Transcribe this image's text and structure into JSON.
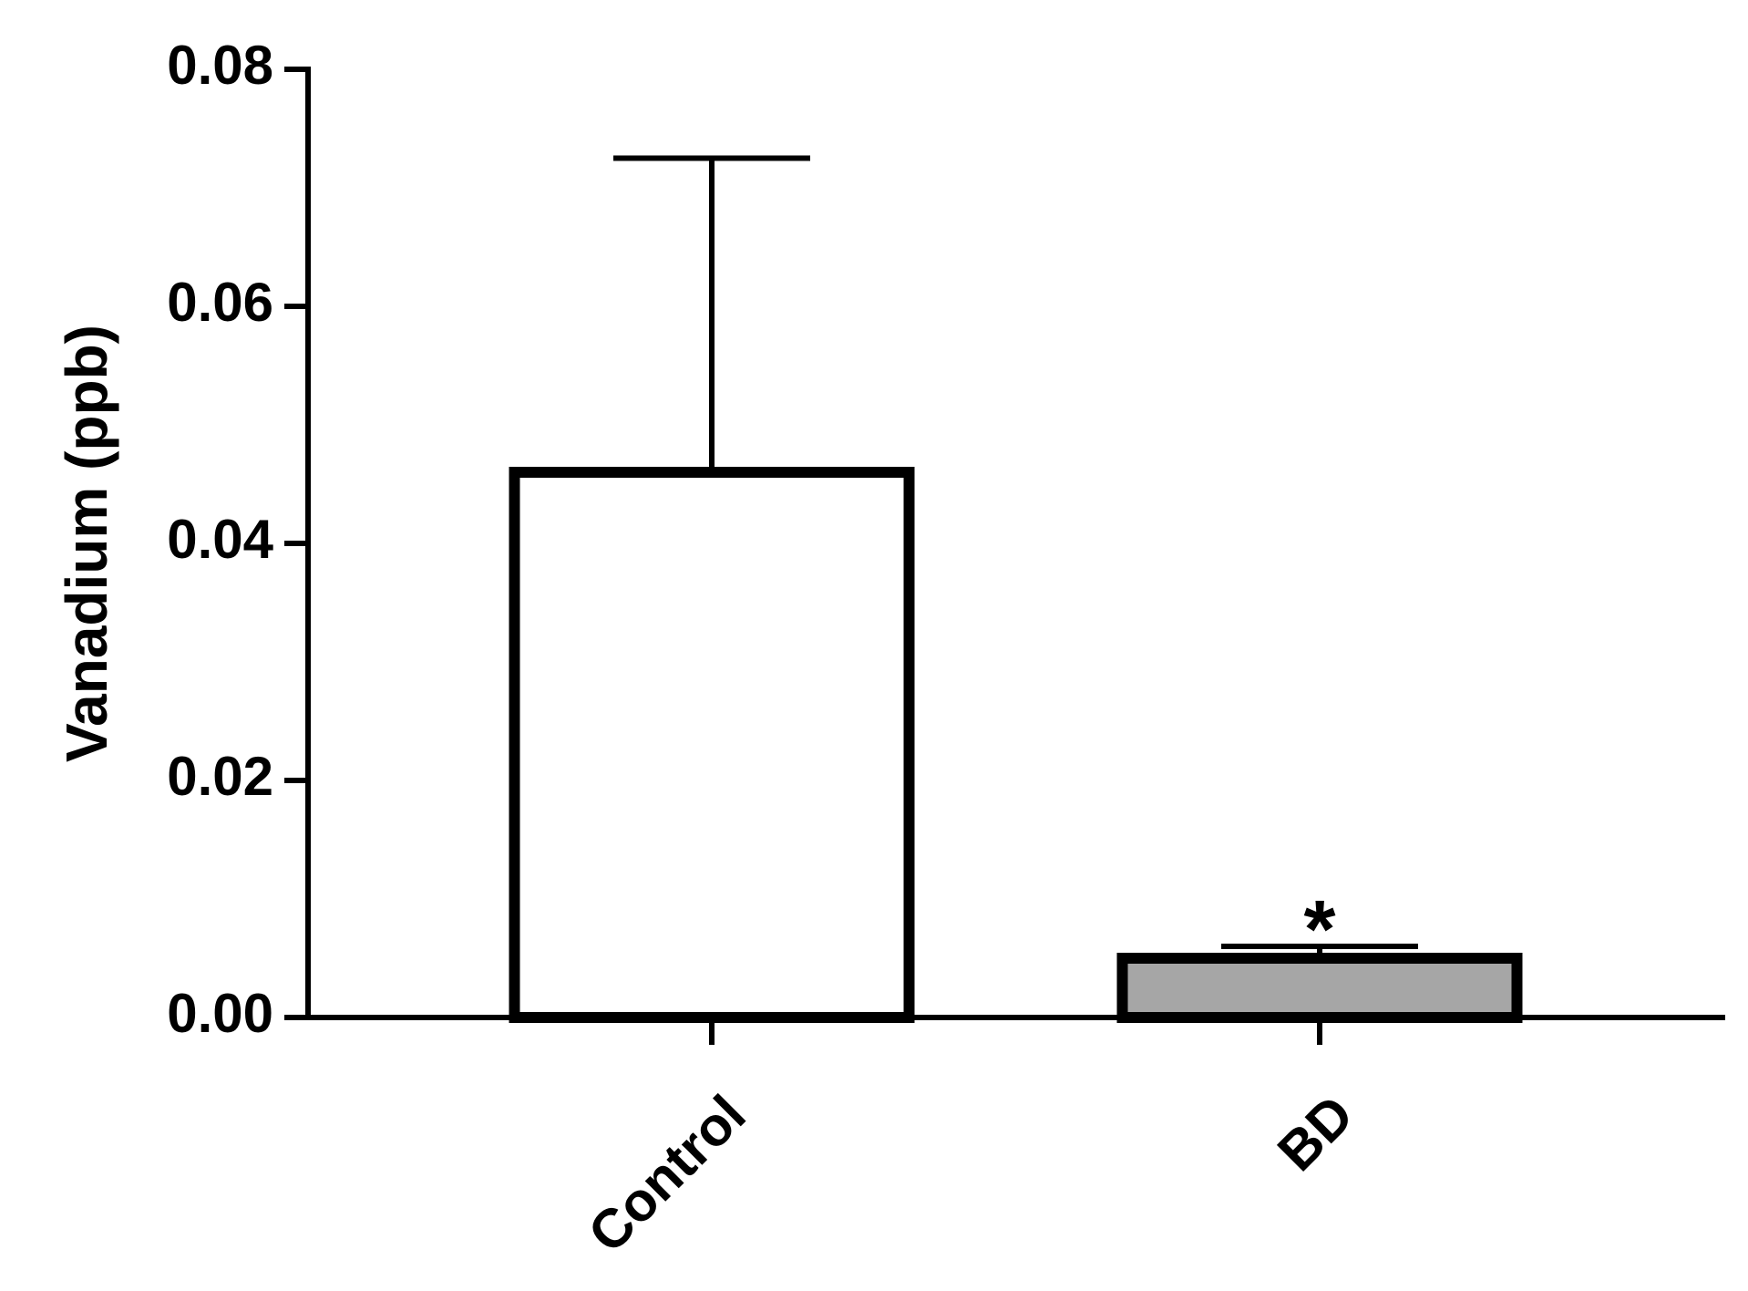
{
  "chart_data": {
    "type": "bar",
    "y_label": "Vanadium (ppb)",
    "categories": [
      "Control",
      "BD"
    ],
    "values": [
      0.046,
      0.005
    ],
    "errors": [
      0.0265,
      0.001
    ],
    "colors": [
      "#ffffff",
      "#a6a6a6"
    ],
    "annotation": "*",
    "ylim": [
      0,
      0.08
    ],
    "yticks": [
      {
        "value": 0,
        "label": "0.00"
      },
      0.02,
      0.04,
      0.06,
      0.08
    ]
  }
}
